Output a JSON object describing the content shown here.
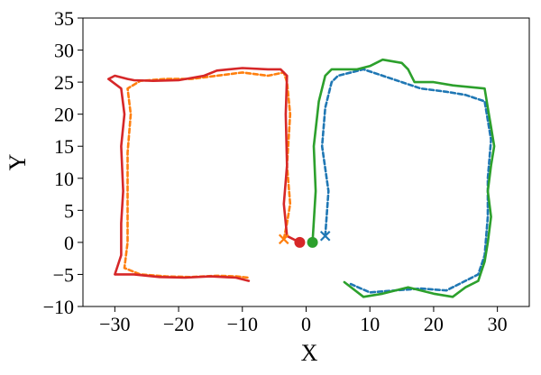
{
  "chart_data": {
    "type": "line",
    "title": "",
    "xlabel": "X",
    "ylabel": "Y",
    "xlim": [
      -35,
      35
    ],
    "ylim": [
      -10,
      35
    ],
    "xticks": [
      -30,
      -20,
      -10,
      0,
      10,
      20,
      30
    ],
    "yticks": [
      -10,
      -5,
      0,
      5,
      10,
      15,
      20,
      25,
      30,
      35
    ],
    "xtick_labels": [
      "−30",
      "−20",
      "−10",
      "0",
      "10",
      "20",
      "30"
    ],
    "ytick_labels": [
      "−10",
      "−5",
      "0",
      "5",
      "10",
      "15",
      "20",
      "25",
      "30",
      "35"
    ],
    "grid": false,
    "legend": "none",
    "series": [
      {
        "color": "#1f77b4",
        "style": "dashed",
        "points": [
          [
            3,
            1
          ],
          [
            3.5,
            8
          ],
          [
            2.5,
            15
          ],
          [
            3,
            21
          ],
          [
            4,
            25
          ],
          [
            5,
            26
          ],
          [
            9,
            27
          ],
          [
            12,
            26
          ],
          [
            15,
            25
          ],
          [
            18,
            24
          ],
          [
            22,
            23.5
          ],
          [
            25,
            23
          ],
          [
            28,
            22
          ],
          [
            29,
            16
          ],
          [
            28.5,
            10
          ],
          [
            28.5,
            4
          ],
          [
            28,
            -2
          ],
          [
            27,
            -5
          ],
          [
            22,
            -7.5
          ],
          [
            18,
            -7.2
          ],
          [
            14,
            -7.5
          ],
          [
            10,
            -7.8
          ],
          [
            7,
            -6.5
          ]
        ],
        "markers": [
          {
            "x": 3,
            "y": 1,
            "shape": "x"
          }
        ]
      },
      {
        "color": "#ff7f0e",
        "style": "dashed",
        "points": [
          [
            -3.5,
            0.5
          ],
          [
            -3,
            3
          ],
          [
            -2.5,
            6
          ],
          [
            -3,
            12
          ],
          [
            -2.5,
            20
          ],
          [
            -3,
            25
          ],
          [
            -3.5,
            26.5
          ],
          [
            -6,
            26
          ],
          [
            -10,
            26.5
          ],
          [
            -14,
            26
          ],
          [
            -18,
            25.5
          ],
          [
            -22,
            25.5
          ],
          [
            -26,
            25.2
          ],
          [
            -28,
            24
          ],
          [
            -27.5,
            20
          ],
          [
            -28,
            14
          ],
          [
            -28,
            6
          ],
          [
            -28,
            0
          ],
          [
            -28.5,
            -4
          ],
          [
            -26,
            -5
          ],
          [
            -22,
            -5.3
          ],
          [
            -18,
            -5.4
          ],
          [
            -14,
            -5.2
          ],
          [
            -11,
            -5.3
          ],
          [
            -9,
            -5.5
          ]
        ],
        "markers": [
          {
            "x": -3.5,
            "y": 0.5,
            "shape": "x"
          }
        ]
      },
      {
        "color": "#2ca02c",
        "style": "solid",
        "points": [
          [
            1,
            0
          ],
          [
            1.5,
            8
          ],
          [
            1.2,
            15
          ],
          [
            2,
            22
          ],
          [
            3,
            26
          ],
          [
            4,
            27
          ],
          [
            8,
            27
          ],
          [
            10,
            27.5
          ],
          [
            12,
            28.5
          ],
          [
            15,
            28
          ],
          [
            16,
            27
          ],
          [
            17,
            25
          ],
          [
            20,
            25
          ],
          [
            23,
            24.5
          ],
          [
            28,
            24
          ],
          [
            28.5,
            21
          ],
          [
            29,
            18
          ],
          [
            29.5,
            15
          ],
          [
            29,
            12
          ],
          [
            28.5,
            8
          ],
          [
            29,
            4
          ],
          [
            28.5,
            0
          ],
          [
            28,
            -3
          ],
          [
            27,
            -6
          ],
          [
            25,
            -7
          ],
          [
            23,
            -8.5
          ],
          [
            20,
            -8
          ],
          [
            16,
            -7
          ],
          [
            12,
            -8
          ],
          [
            9,
            -8.5
          ],
          [
            6,
            -6.2
          ]
        ],
        "markers": [
          {
            "x": 1,
            "y": 0,
            "shape": "o"
          }
        ]
      },
      {
        "color": "#d62728",
        "style": "solid",
        "points": [
          [
            -1,
            0
          ],
          [
            -3,
            1
          ],
          [
            -3.5,
            6
          ],
          [
            -3,
            12
          ],
          [
            -3.2,
            20
          ],
          [
            -3,
            26
          ],
          [
            -4,
            27
          ],
          [
            -6,
            27
          ],
          [
            -10,
            27.2
          ],
          [
            -14,
            26.8
          ],
          [
            -16,
            26
          ],
          [
            -20,
            25.3
          ],
          [
            -24,
            25.2
          ],
          [
            -27,
            25.3
          ],
          [
            -28,
            25.5
          ],
          [
            -30,
            26
          ],
          [
            -31,
            25.5
          ],
          [
            -29,
            24
          ],
          [
            -28.5,
            20
          ],
          [
            -29,
            15
          ],
          [
            -28.7,
            8
          ],
          [
            -29,
            3
          ],
          [
            -29,
            -2
          ],
          [
            -30,
            -5
          ],
          [
            -27,
            -5
          ],
          [
            -23,
            -5.4
          ],
          [
            -19,
            -5.5
          ],
          [
            -15,
            -5.3
          ],
          [
            -11,
            -5.5
          ],
          [
            -9,
            -6
          ]
        ],
        "markers": [
          {
            "x": -1,
            "y": 0,
            "shape": "o"
          }
        ]
      }
    ]
  }
}
